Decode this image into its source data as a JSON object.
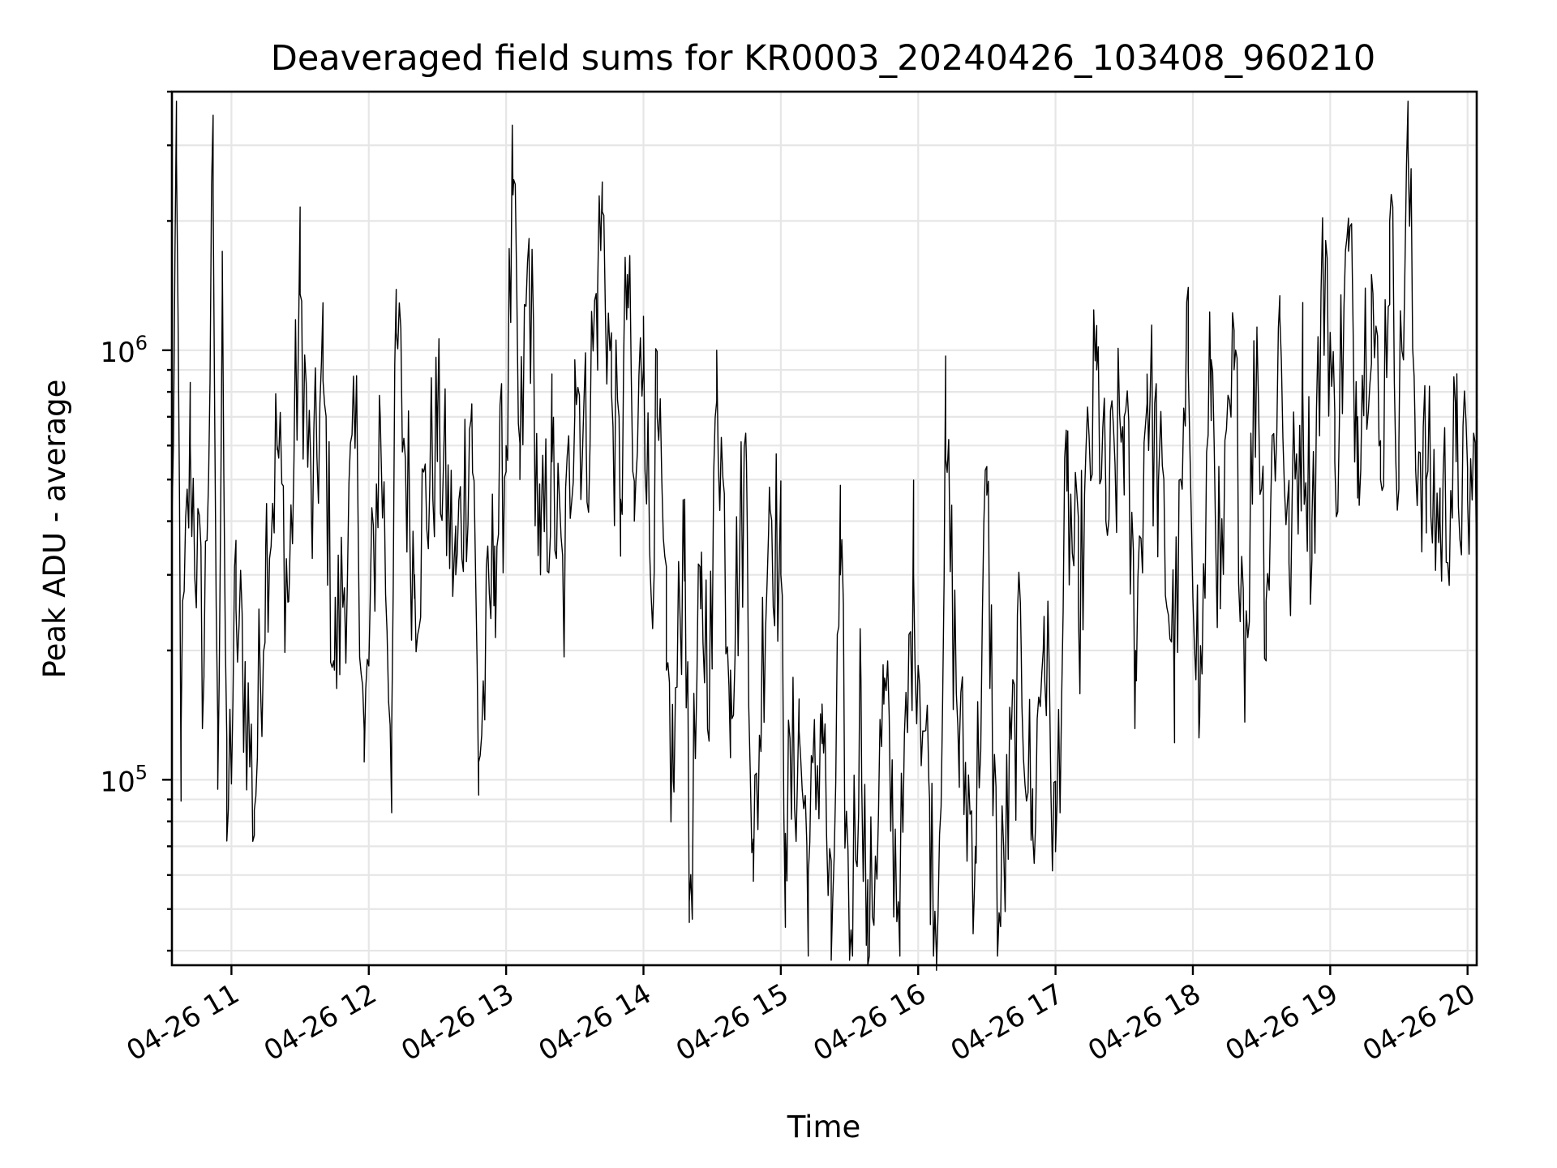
{
  "chart_data": {
    "type": "line",
    "title": "Deaveraged field sums for KR0003_20240426_103408_960210",
    "xlabel": "Time",
    "ylabel": "Peak ADU - average",
    "yscale": "log",
    "grid": true,
    "line_color": "#000000",
    "xlim": [
      "2024-04-26 10:34",
      "2024-04-26 20:04"
    ],
    "ylim": [
      37000,
      4000000
    ],
    "x_ticks": [
      {
        "time": "2024-04-26 11:00",
        "label": "04-26 11"
      },
      {
        "time": "2024-04-26 12:00",
        "label": "04-26 12"
      },
      {
        "time": "2024-04-26 13:00",
        "label": "04-26 13"
      },
      {
        "time": "2024-04-26 14:00",
        "label": "04-26 14"
      },
      {
        "time": "2024-04-26 15:00",
        "label": "04-26 15"
      },
      {
        "time": "2024-04-26 16:00",
        "label": "04-26 16"
      },
      {
        "time": "2024-04-26 17:00",
        "label": "04-26 17"
      },
      {
        "time": "2024-04-26 18:00",
        "label": "04-26 18"
      },
      {
        "time": "2024-04-26 19:00",
        "label": "04-26 19"
      },
      {
        "time": "2024-04-26 20:00",
        "label": "04-26 20"
      }
    ],
    "y_ticks": [
      {
        "value": 100000,
        "base": "10",
        "exp": "5"
      },
      {
        "value": 1000000,
        "base": "10",
        "exp": "6"
      }
    ],
    "anchors": [
      [
        "2024-04-26 10:34",
        400000
      ],
      [
        "2024-04-26 10:36",
        2800000
      ],
      [
        "2024-04-26 10:38",
        130000
      ],
      [
        "2024-04-26 10:42",
        600000
      ],
      [
        "2024-04-26 10:48",
        180000
      ],
      [
        "2024-04-26 10:52",
        2300000
      ],
      [
        "2024-04-26 10:54",
        95000
      ],
      [
        "2024-04-26 10:56",
        1700000
      ],
      [
        "2024-04-26 10:58",
        72000
      ],
      [
        "2024-04-26 11:02",
        250000
      ],
      [
        "2024-04-26 11:06",
        170000
      ],
      [
        "2024-04-26 11:10",
        85000
      ],
      [
        "2024-04-26 11:15",
        350000
      ],
      [
        "2024-04-26 11:20",
        600000
      ],
      [
        "2024-04-26 11:25",
        260000
      ],
      [
        "2024-04-26 11:30",
        1350000
      ],
      [
        "2024-04-26 11:35",
        400000
      ],
      [
        "2024-04-26 11:40",
        850000
      ],
      [
        "2024-04-26 11:45",
        180000
      ],
      [
        "2024-04-26 11:55",
        600000
      ],
      [
        "2024-04-26 11:58",
        110000
      ],
      [
        "2024-04-26 12:05",
        700000
      ],
      [
        "2024-04-26 12:10",
        130000
      ],
      [
        "2024-04-26 12:12",
        1100000
      ],
      [
        "2024-04-26 12:20",
        300000
      ],
      [
        "2024-04-26 12:30",
        650000
      ],
      [
        "2024-04-26 12:38",
        300000
      ],
      [
        "2024-04-26 12:45",
        750000
      ],
      [
        "2024-04-26 12:48",
        110000
      ],
      [
        "2024-04-26 12:55",
        350000
      ],
      [
        "2024-04-26 13:00",
        600000
      ],
      [
        "2024-04-26 13:03",
        2300000
      ],
      [
        "2024-04-26 13:06",
        500000
      ],
      [
        "2024-04-26 13:10",
        1700000
      ],
      [
        "2024-04-26 13:15",
        300000
      ],
      [
        "2024-04-26 13:20",
        550000
      ],
      [
        "2024-04-26 13:25",
        250000
      ],
      [
        "2024-04-26 13:30",
        950000
      ],
      [
        "2024-04-26 13:35",
        600000
      ],
      [
        "2024-04-26 13:40",
        1400000
      ],
      [
        "2024-04-26 13:42",
        2100000
      ],
      [
        "2024-04-26 13:46",
        800000
      ],
      [
        "2024-04-26 13:50",
        450000
      ],
      [
        "2024-04-26 13:53",
        1500000
      ],
      [
        "2024-04-26 13:56",
        400000
      ],
      [
        "2024-04-26 14:00",
        1200000
      ],
      [
        "2024-04-26 14:03",
        300000
      ],
      [
        "2024-04-26 14:06",
        700000
      ],
      [
        "2024-04-26 14:10",
        180000
      ],
      [
        "2024-04-26 14:13",
        100000
      ],
      [
        "2024-04-26 14:18",
        450000
      ],
      [
        "2024-04-26 14:20",
        52000
      ],
      [
        "2024-04-26 14:25",
        250000
      ],
      [
        "2024-04-26 14:30",
        200000
      ],
      [
        "2024-04-26 14:32",
        1000000
      ],
      [
        "2024-04-26 14:38",
        180000
      ],
      [
        "2024-04-26 14:45",
        550000
      ],
      [
        "2024-04-26 14:48",
        58000
      ],
      [
        "2024-04-26 14:55",
        480000
      ],
      [
        "2024-04-26 15:00",
        300000
      ],
      [
        "2024-04-26 15:02",
        75000
      ],
      [
        "2024-04-26 15:08",
        130000
      ],
      [
        "2024-04-26 15:12",
        60000
      ],
      [
        "2024-04-26 15:18",
        150000
      ],
      [
        "2024-04-26 15:22",
        38000
      ],
      [
        "2024-04-26 15:26",
        300000
      ],
      [
        "2024-04-26 15:30",
        38000
      ],
      [
        "2024-04-26 15:35",
        170000
      ],
      [
        "2024-04-26 15:38",
        37000
      ],
      [
        "2024-04-26 15:45",
        150000
      ],
      [
        "2024-04-26 15:52",
        50000
      ],
      [
        "2024-04-26 15:58",
        300000
      ],
      [
        "2024-04-26 16:05",
        90000
      ],
      [
        "2024-04-26 16:08",
        36000
      ],
      [
        "2024-04-26 16:12",
        560000
      ],
      [
        "2024-04-26 16:18",
        120000
      ],
      [
        "2024-04-26 16:25",
        70000
      ],
      [
        "2024-04-26 16:30",
        460000
      ],
      [
        "2024-04-26 16:35",
        43000
      ],
      [
        "2024-04-26 16:45",
        200000
      ],
      [
        "2024-04-26 16:50",
        75000
      ],
      [
        "2024-04-26 16:55",
        240000
      ],
      [
        "2024-04-26 17:00",
        68000
      ],
      [
        "2024-04-26 17:05",
        470000
      ],
      [
        "2024-04-26 17:10",
        250000
      ],
      [
        "2024-04-26 17:18",
        900000
      ],
      [
        "2024-04-26 17:22",
        400000
      ],
      [
        "2024-04-26 17:30",
        700000
      ],
      [
        "2024-04-26 17:35",
        200000
      ],
      [
        "2024-04-26 17:40",
        880000
      ],
      [
        "2024-04-26 17:45",
        500000
      ],
      [
        "2024-04-26 17:52",
        190000
      ],
      [
        "2024-04-26 17:58",
        900000
      ],
      [
        "2024-04-26 18:03",
        140000
      ],
      [
        "2024-04-26 18:08",
        950000
      ],
      [
        "2024-04-26 18:12",
        250000
      ],
      [
        "2024-04-26 18:18",
        900000
      ],
      [
        "2024-04-26 18:23",
        210000
      ],
      [
        "2024-04-26 18:28",
        1100000
      ],
      [
        "2024-04-26 18:32",
        260000
      ],
      [
        "2024-04-26 18:38",
        1200000
      ],
      [
        "2024-04-26 18:42",
        320000
      ],
      [
        "2024-04-26 18:48",
        800000
      ],
      [
        "2024-04-26 18:52",
        400000
      ],
      [
        "2024-04-26 18:58",
        1800000
      ],
      [
        "2024-04-26 19:02",
        550000
      ],
      [
        "2024-04-26 19:08",
        1700000
      ],
      [
        "2024-04-26 19:12",
        700000
      ],
      [
        "2024-04-26 19:18",
        1500000
      ],
      [
        "2024-04-26 19:22",
        500000
      ],
      [
        "2024-04-26 19:26",
        2000000
      ],
      [
        "2024-04-26 19:30",
        600000
      ],
      [
        "2024-04-26 19:34",
        3000000
      ],
      [
        "2024-04-26 19:37",
        700000
      ],
      [
        "2024-04-26 19:42",
        500000
      ],
      [
        "2024-04-26 19:48",
        400000
      ],
      [
        "2024-04-26 19:55",
        550000
      ],
      [
        "2024-04-26 20:00",
        450000
      ],
      [
        "2024-04-26 20:04",
        500000
      ]
    ]
  }
}
